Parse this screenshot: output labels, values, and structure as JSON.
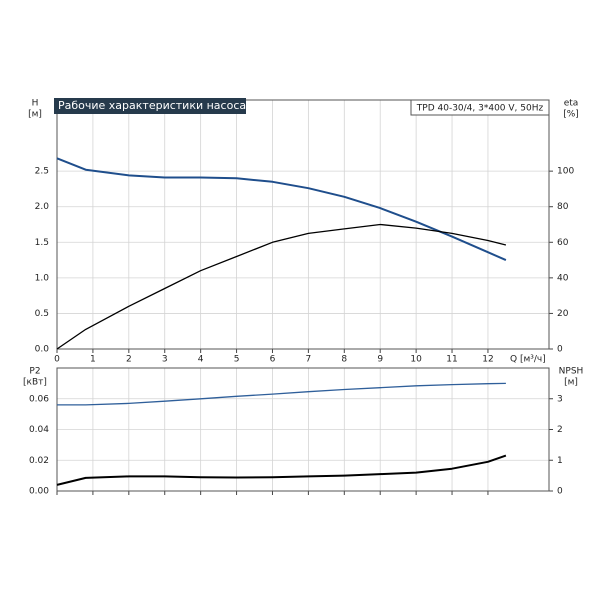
{
  "chart_data": [
    {
      "type": "line",
      "title": "Рабочие характеристики насоса",
      "annotation": "TPD 40-30/4, 3*400 V, 50Hz",
      "xlabel": "Q [м³/ч]",
      "y_unit": "[м]",
      "y2_unit": "[%]",
      "x": [
        0,
        0.8,
        2,
        3,
        4,
        5,
        6,
        7,
        8,
        9,
        10,
        11,
        12,
        12.5
      ],
      "series": [
        {
          "name": "H",
          "color": "#1f4e8c",
          "axis": "y",
          "values": [
            2.68,
            2.52,
            2.44,
            2.41,
            2.41,
            2.4,
            2.35,
            2.26,
            2.14,
            1.98,
            1.79,
            1.58,
            1.36,
            1.25
          ]
        },
        {
          "name": "eta",
          "color": "#000000",
          "axis": "y2",
          "values": [
            0,
            11,
            24,
            34,
            44,
            52,
            60,
            65,
            67.5,
            70,
            68,
            65,
            61,
            58.5
          ]
        }
      ],
      "xlim": [
        0,
        13.7
      ],
      "xticks": [
        0,
        1,
        2,
        3,
        4,
        5,
        6,
        7,
        8,
        9,
        10,
        11,
        12
      ],
      "ylim": [
        0,
        3.5
      ],
      "yticks": [
        {
          "value": 0,
          "label": "0.0"
        },
        0.5,
        {
          "value": 1,
          "label": "1.0"
        },
        1.5,
        {
          "value": 2,
          "label": "2.0"
        },
        2.5
      ],
      "y2lim": [
        0,
        140
      ],
      "y2ticks": [
        0,
        20,
        40,
        60,
        80,
        100
      ],
      "grid": true
    },
    {
      "type": "line",
      "y_unit": "[кВт]",
      "y2_unit": "[м]",
      "x": [
        0,
        0.8,
        2,
        3,
        4,
        5,
        6,
        7,
        8,
        9,
        10,
        11,
        12,
        12.5
      ],
      "series": [
        {
          "name": "P2",
          "color": "#000000",
          "axis": "y",
          "values": [
            0.004,
            0.0085,
            0.0095,
            0.0095,
            0.009,
            0.0088,
            0.009,
            0.0095,
            0.01,
            0.011,
            0.012,
            0.0145,
            0.019,
            0.023
          ]
        },
        {
          "name": "NPSH",
          "color": "#2f5f9a",
          "axis": "y2",
          "values": [
            2.8,
            2.8,
            2.85,
            2.92,
            3.0,
            3.08,
            3.15,
            3.23,
            3.3,
            3.36,
            3.42,
            3.46,
            3.49,
            3.5
          ]
        }
      ],
      "xlim": [
        0,
        13.7
      ],
      "xticks": [
        0,
        1,
        2,
        3,
        4,
        5,
        6,
        7,
        8,
        9,
        10,
        11,
        12
      ],
      "ylim": [
        0,
        0.08
      ],
      "yticks": [
        {
          "value": 0,
          "label": "0.00"
        },
        {
          "value": 0.02,
          "label": "0.02"
        },
        {
          "value": 0.04,
          "label": "0.04"
        },
        {
          "value": 0.06,
          "label": "0.06"
        }
      ],
      "y2lim": [
        0,
        4
      ],
      "y2ticks": [
        0,
        1,
        2,
        3
      ],
      "grid": true
    }
  ]
}
